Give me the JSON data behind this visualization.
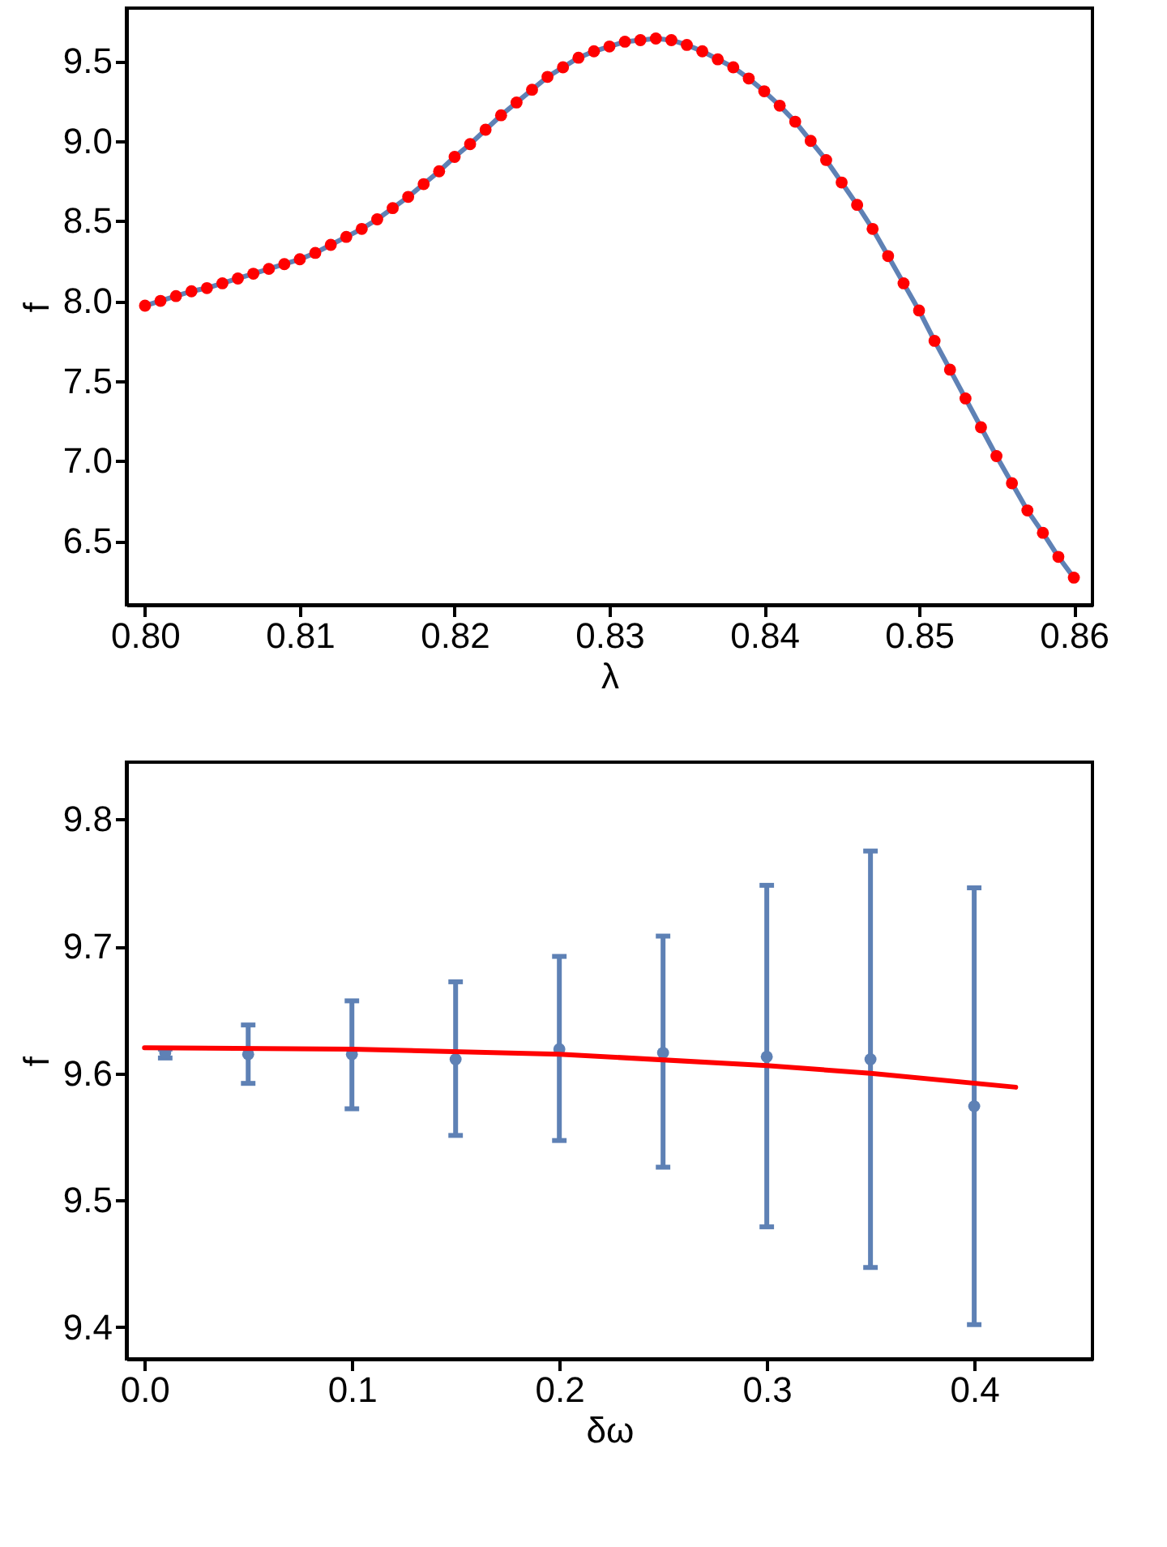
{
  "chart_data": [
    {
      "type": "line",
      "xlabel": "λ",
      "ylabel": "f",
      "x": [
        0.8,
        0.801,
        0.802,
        0.803,
        0.804,
        0.805,
        0.806,
        0.807,
        0.808,
        0.809,
        0.81,
        0.811,
        0.812,
        0.813,
        0.814,
        0.815,
        0.816,
        0.817,
        0.818,
        0.819,
        0.82,
        0.821,
        0.822,
        0.823,
        0.824,
        0.825,
        0.826,
        0.827,
        0.828,
        0.829,
        0.83,
        0.831,
        0.832,
        0.833,
        0.834,
        0.835,
        0.836,
        0.837,
        0.838,
        0.839,
        0.84,
        0.841,
        0.842,
        0.843,
        0.844,
        0.845,
        0.846,
        0.847,
        0.848,
        0.849,
        0.85,
        0.851,
        0.852,
        0.853,
        0.854,
        0.855,
        0.856,
        0.857,
        0.858,
        0.859,
        0.86
      ],
      "series": [
        {
          "color": "#5e81b5",
          "values": [
            7.97,
            8.0,
            8.03,
            8.06,
            8.08,
            8.11,
            8.14,
            8.17,
            8.2,
            8.23,
            8.26,
            8.3,
            8.35,
            8.4,
            8.45,
            8.51,
            8.58,
            8.65,
            8.73,
            8.81,
            8.9,
            8.98,
            9.07,
            9.16,
            9.24,
            9.32,
            9.4,
            9.46,
            9.52,
            9.56,
            9.59,
            9.62,
            9.63,
            9.64,
            9.63,
            9.6,
            9.56,
            9.51,
            9.46,
            9.39,
            9.31,
            9.22,
            9.12,
            9.0,
            8.88,
            8.74,
            8.6,
            8.45,
            8.28,
            8.11,
            7.94,
            7.75,
            7.57,
            7.39,
            7.21,
            7.03,
            6.86,
            6.69,
            6.55,
            6.4,
            6.27
          ]
        },
        {
          "type": "scatter",
          "color": "#ff0000",
          "values": [
            7.97,
            8.0,
            8.03,
            8.06,
            8.08,
            8.11,
            8.14,
            8.17,
            8.2,
            8.23,
            8.26,
            8.3,
            8.35,
            8.4,
            8.45,
            8.51,
            8.58,
            8.65,
            8.73,
            8.81,
            8.9,
            8.98,
            9.07,
            9.16,
            9.24,
            9.32,
            9.4,
            9.46,
            9.52,
            9.56,
            9.59,
            9.62,
            9.63,
            9.64,
            9.63,
            9.6,
            9.56,
            9.51,
            9.46,
            9.39,
            9.31,
            9.22,
            9.12,
            9.0,
            8.88,
            8.74,
            8.6,
            8.45,
            8.28,
            8.11,
            7.94,
            7.75,
            7.57,
            7.39,
            7.21,
            7.03,
            6.86,
            6.69,
            6.55,
            6.4,
            6.27
          ]
        }
      ],
      "xlim": [
        0.7988,
        0.8612
      ],
      "xticks": [
        {
          "value": 0.8,
          "label": "0.80"
        },
        0.81,
        0.82,
        0.83,
        0.84,
        0.85,
        0.86
      ],
      "ylim": [
        6.1,
        9.83
      ],
      "yticks": [
        6.5,
        {
          "value": 7,
          "label": "7.0"
        },
        7.5,
        {
          "value": 8,
          "label": "8.0"
        },
        8.5,
        {
          "value": 9,
          "label": "9.0"
        },
        9.5
      ],
      "grid": false
    },
    {
      "type": "scatter",
      "xlabel": "δω",
      "ylabel": "f",
      "series": [
        {
          "color": "#5e81b5",
          "x": [
            0.01,
            0.05,
            0.1,
            0.15,
            0.2,
            0.25,
            0.3,
            0.35,
            0.4
          ],
          "values": [
            9.616,
            9.615,
            9.615,
            9.611,
            9.619,
            9.616,
            9.613,
            9.611,
            9.574
          ],
          "errors": [
            [
              9.612,
              9.619
            ],
            [
              9.592,
              9.638
            ],
            [
              9.572,
              9.657
            ],
            [
              9.551,
              9.672
            ],
            [
              9.547,
              9.692
            ],
            [
              9.526,
              9.708
            ],
            [
              9.479,
              9.748
            ],
            [
              9.447,
              9.775
            ],
            [
              9.402,
              9.746
            ]
          ]
        },
        {
          "type": "line",
          "color": "#ff0000",
          "x": [
            0,
            0.1,
            0.2,
            0.3,
            0.35,
            0.42
          ],
          "values": [
            9.62,
            9.619,
            9.615,
            9.606,
            9.6,
            9.589
          ]
        }
      ],
      "xlim": [
        -0.0087,
        0.457
      ],
      "xticks": [
        {
          "value": 0,
          "label": "0.0"
        },
        0.1,
        0.2,
        0.3,
        0.4
      ],
      "ylim": [
        9.375,
        9.845
      ],
      "yticks": [
        9.4,
        9.5,
        9.6,
        9.7,
        9.8
      ],
      "grid": false
    }
  ]
}
